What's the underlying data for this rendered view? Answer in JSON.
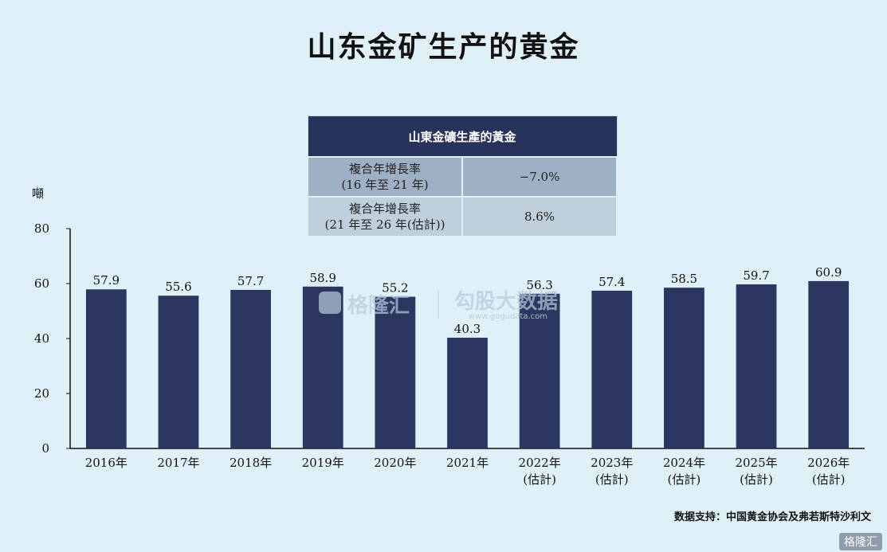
{
  "title": "山东金矿生产的黄金",
  "cagr_table": {
    "header": "山東金礦生產的黃金",
    "rows": [
      {
        "label_line1": "複合年增長率",
        "label_line2": "(16 年至 21 年)",
        "value": "−7.0%"
      },
      {
        "label_line1": "複合年增長率",
        "label_line2": "(21 年至 26 年(估計))",
        "value": "8.6%"
      }
    ]
  },
  "source": "数据支持：中国黄金协会及弗若斯特沙利文",
  "watermark": {
    "left": "格隆汇",
    "right": "勾股大数据",
    "url": "www.gogudata.com"
  },
  "corner_logo": "格隆汇",
  "chart_data": {
    "type": "bar",
    "ylabel": "噸",
    "ylim": [
      0,
      80
    ],
    "yticks": [
      0,
      20,
      40,
      60,
      80
    ],
    "categories": [
      {
        "line1": "2016年",
        "line2": ""
      },
      {
        "line1": "2017年",
        "line2": ""
      },
      {
        "line1": "2018年",
        "line2": ""
      },
      {
        "line1": "2019年",
        "line2": ""
      },
      {
        "line1": "2020年",
        "line2": ""
      },
      {
        "line1": "2021年",
        "line2": ""
      },
      {
        "line1": "2022年",
        "line2": "(估計)"
      },
      {
        "line1": "2023年",
        "line2": "(估計)"
      },
      {
        "line1": "2024年",
        "line2": "(估計)"
      },
      {
        "line1": "2025年",
        "line2": "(估計)"
      },
      {
        "line1": "2026年",
        "line2": "(估計)"
      }
    ],
    "values": [
      57.9,
      55.6,
      57.7,
      58.9,
      55.2,
      40.3,
      56.3,
      57.4,
      58.5,
      59.7,
      60.9
    ],
    "bar_color": "#2c3660"
  }
}
